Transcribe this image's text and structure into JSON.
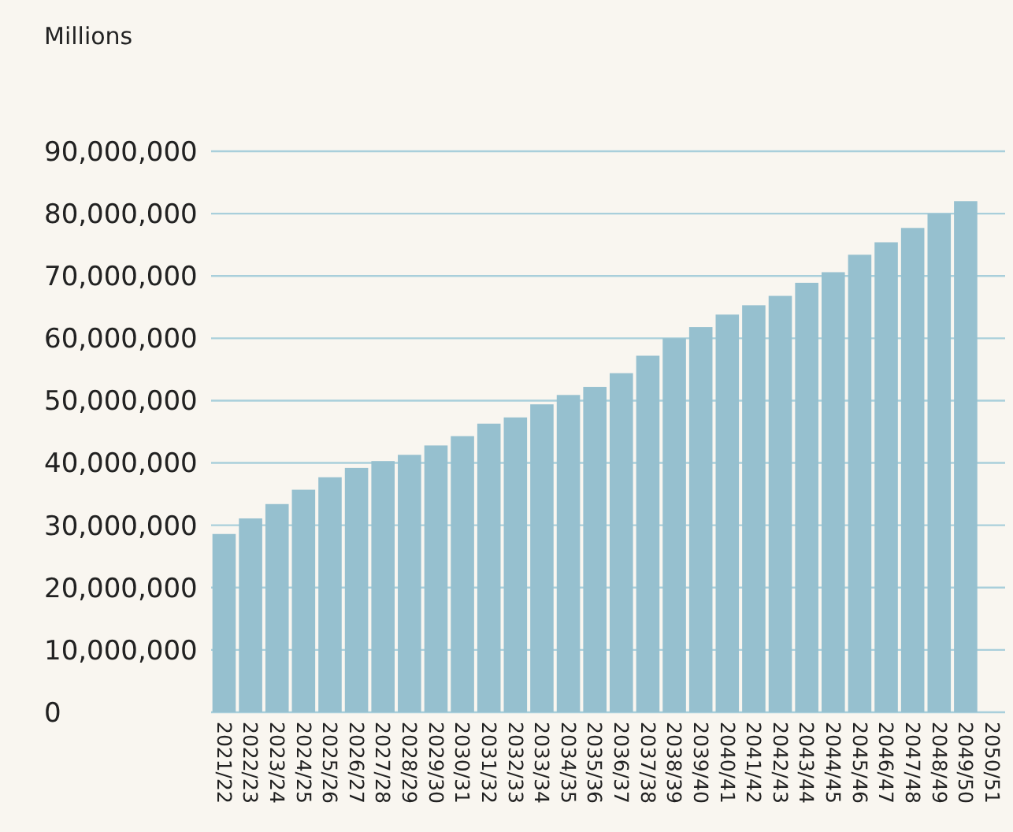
{
  "chart_data": {
    "type": "bar",
    "ylabel": "Millions",
    "categories": [
      "2021/22",
      "2022/23",
      "2023/24",
      "2024/25",
      "2025/26",
      "2026/27",
      "2027/28",
      "2028/29",
      "2029/30",
      "2030/31",
      "2031/32",
      "2032/33",
      "2033/34",
      "2034/35",
      "2035/36",
      "2036/37",
      "2037/38",
      "2038/39",
      "2039/40",
      "2040/41",
      "2041/42",
      "2042/43",
      "2043/44",
      "2044/45",
      "2045/46",
      "2046/47",
      "2047/48",
      "2048/49",
      "2049/50",
      "2050/51"
    ],
    "values": [
      28600000,
      31100000,
      33400000,
      35700000,
      37700000,
      39200000,
      40300000,
      41300000,
      42800000,
      44300000,
      46300000,
      47300000,
      49400000,
      50900000,
      52200000,
      54400000,
      57200000,
      60000000,
      61800000,
      63800000,
      65300000,
      66800000,
      68900000,
      70600000,
      73400000,
      75400000,
      77700000,
      80000000,
      82000000,
      null
    ],
    "color": "#96c0cf",
    "ylim": [
      0,
      90000000
    ],
    "yticks": [
      {
        "value": 0,
        "label": "0"
      },
      {
        "value": 10000000,
        "label": "10,000,000"
      },
      {
        "value": 20000000,
        "label": "20,000,000"
      },
      {
        "value": 30000000,
        "label": "30,000,000"
      },
      {
        "value": 40000000,
        "label": "40,000,000"
      },
      {
        "value": 50000000,
        "label": "50,000,000"
      },
      {
        "value": 60000000,
        "label": "60,000,000"
      },
      {
        "value": 70000000,
        "label": "70,000,000"
      },
      {
        "value": 80000000,
        "label": "80,000,000"
      },
      {
        "value": 90000000,
        "label": "90,000,000"
      }
    ],
    "grid": "y"
  }
}
